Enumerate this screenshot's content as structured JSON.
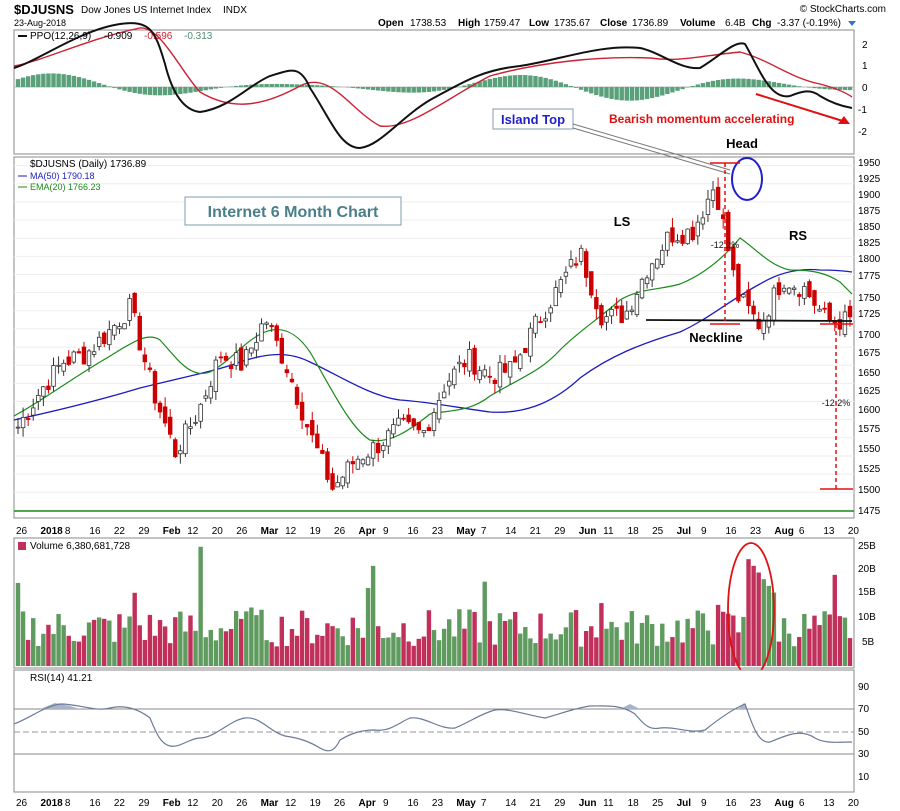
{
  "header": {
    "symbol": "$DJUSNS",
    "name": "Dow Jones US Internet Index",
    "exchange": "INDX",
    "date": "23-Aug-2018",
    "brand": "© StockCharts.com",
    "quote": {
      "open_label": "Open",
      "open": "1738.53",
      "high_label": "High",
      "high": "1759.47",
      "low_label": "Low",
      "low": "1735.67",
      "close_label": "Close",
      "close": "1736.89",
      "volume_label": "Volume",
      "volume": "6.4B",
      "chg_label": "Chg",
      "chg": "-3.37 (-0.19%)"
    }
  },
  "colors": {
    "up": "#3a8a3a",
    "down": "#cc0000",
    "ma50": "#1c1cff",
    "ema20": "#1a8a1a",
    "ppo_line": "#000000",
    "ppo_signal": "#cc0000",
    "histogram": "#5aa07a",
    "annotation_red": "#e01010",
    "annotation_blue": "#1f1fcc",
    "vol_up": "#5f9a5f",
    "vol_down": "#c0305a",
    "rsi": "#7080a0"
  },
  "ppo_panel": {
    "label": "PPO(12,26,9)",
    "ppo_value": "-0.909",
    "signal_value": "-0.596",
    "hist_value": "-0.313",
    "ticks": [
      "2",
      "1",
      "0",
      "-1",
      "-2"
    ],
    "annotation": "Bearish momentum accelerating"
  },
  "price_panel": {
    "legend_symbol": "$DJUSNS (Daily) 1736.89",
    "legend_ma": "MA(50) 1790.18",
    "legend_ema": "EMA(20) 1766.23",
    "title_box": "Internet 6 Month Chart",
    "island_label": "Island Top",
    "head_label": "Head",
    "ls_label": "LS",
    "rs_label": "RS",
    "neckline_label": "Neckline",
    "measure_label_1": "-12.2%",
    "measure_label_2": "-12.2%",
    "y_ticks": [
      "1950",
      "1925",
      "1900",
      "1875",
      "1850",
      "1825",
      "1800",
      "1775",
      "1750",
      "1725",
      "1700",
      "1675",
      "1650",
      "1625",
      "1600",
      "1575",
      "1550",
      "1525",
      "1500",
      "1475"
    ]
  },
  "x_axis": {
    "labels": [
      "26",
      "2018",
      "8",
      "16",
      "22",
      "29",
      "Feb",
      "12",
      "20",
      "26",
      "Mar",
      "12",
      "19",
      "26",
      "Apr",
      "9",
      "16",
      "23",
      "May",
      "7",
      "14",
      "21",
      "29",
      "Jun",
      "11",
      "18",
      "25",
      "Jul",
      "9",
      "16",
      "23",
      "Aug",
      "6",
      "13",
      "20"
    ]
  },
  "volume_panel": {
    "label": "Volume 6,380,681,728",
    "ticks": [
      "25B",
      "20B",
      "15B",
      "10B",
      "5B"
    ]
  },
  "rsi_panel": {
    "label": "RSI(14) 41.21",
    "ticks": [
      "90",
      "70",
      "50",
      "30",
      "10"
    ]
  },
  "chart_data": [
    {
      "type": "line",
      "panel": "PPO(12,26,9)",
      "series": [
        {
          "name": "PPO",
          "x": [
            "2017-12-26",
            "2018-01-16",
            "2018-02-01",
            "2018-02-12",
            "2018-03-01",
            "2018-03-12",
            "2018-04-02",
            "2018-04-16",
            "2018-05-01",
            "2018-05-21",
            "2018-06-11",
            "2018-07-02",
            "2018-07-16",
            "2018-07-25",
            "2018-08-01",
            "2018-08-13",
            "2018-08-23"
          ],
          "values": [
            0.8,
            1.9,
            2.2,
            0.4,
            -0.8,
            0.2,
            -2.2,
            -1.6,
            0.5,
            1.4,
            2.1,
            1.1,
            1.5,
            2.1,
            -0.1,
            -0.4,
            -0.909
          ]
        },
        {
          "name": "Signal",
          "x": [
            "2017-12-26",
            "2018-01-22",
            "2018-02-05",
            "2018-02-26",
            "2018-03-14",
            "2018-04-05",
            "2018-04-23",
            "2018-05-14",
            "2018-06-04",
            "2018-06-20",
            "2018-07-10",
            "2018-07-25",
            "2018-08-06",
            "2018-08-23"
          ],
          "values": [
            0.5,
            1.3,
            1.9,
            0.2,
            0.3,
            -1.6,
            -1.4,
            0.7,
            1.5,
            1.9,
            1.3,
            1.8,
            0.5,
            -0.596
          ]
        }
      ],
      "histogram_last": -0.313,
      "ylim": [
        -2.4,
        2.4
      ]
    },
    {
      "type": "candlestick",
      "panel": "$DJUSNS (Daily)",
      "x": [
        "2017-12-26",
        "2018-01-02",
        "2018-01-08",
        "2018-01-16",
        "2018-01-22",
        "2018-01-29",
        "2018-02-05",
        "2018-02-12",
        "2018-02-20",
        "2018-02-26",
        "2018-03-05",
        "2018-03-12",
        "2018-03-19",
        "2018-03-26",
        "2018-04-02",
        "2018-04-09",
        "2018-04-16",
        "2018-04-23",
        "2018-04-30",
        "2018-05-07",
        "2018-05-14",
        "2018-05-21",
        "2018-05-29",
        "2018-06-04",
        "2018-06-11",
        "2018-06-18",
        "2018-06-25",
        "2018-07-02",
        "2018-07-09",
        "2018-07-16",
        "2018-07-20",
        "2018-07-25",
        "2018-07-27",
        "2018-08-01",
        "2018-08-06",
        "2018-08-13",
        "2018-08-20",
        "2018-08-23"
      ],
      "close": [
        1590,
        1640,
        1680,
        1690,
        1720,
        1755,
        1640,
        1555,
        1610,
        1690,
        1675,
        1740,
        1670,
        1580,
        1505,
        1545,
        1565,
        1590,
        1580,
        1650,
        1685,
        1660,
        1670,
        1730,
        1780,
        1830,
        1740,
        1745,
        1810,
        1855,
        1860,
        1925,
        1770,
        1730,
        1795,
        1780,
        1735,
        1736.89
      ],
      "ma50": [
        1595,
        1610,
        1630,
        1650,
        1665,
        1690,
        1695,
        1685,
        1680,
        1680,
        1685,
        1690,
        1690,
        1675,
        1645,
        1615,
        1600,
        1595,
        1590,
        1590,
        1595,
        1605,
        1625,
        1650,
        1670,
        1690,
        1700,
        1710,
        1720,
        1740,
        1755,
        1765,
        1770,
        1775,
        1785,
        1790,
        1790,
        1790.18
      ],
      "ema20": [
        1590,
        1620,
        1660,
        1690,
        1710,
        1720,
        1710,
        1660,
        1640,
        1660,
        1680,
        1705,
        1700,
        1660,
        1610,
        1570,
        1560,
        1570,
        1585,
        1600,
        1640,
        1645,
        1660,
        1680,
        1720,
        1765,
        1760,
        1765,
        1780,
        1800,
        1815,
        1840,
        1830,
        1800,
        1790,
        1790,
        1770,
        1766.23
      ],
      "neckline": 1715,
      "ylim": [
        1470,
        1955
      ]
    },
    {
      "type": "bar",
      "panel": "Volume",
      "last_value": 6380681728,
      "ylim": [
        0,
        26
      ]
    },
    {
      "type": "line",
      "panel": "RSI(14)",
      "series": [
        {
          "name": "RSI(14)",
          "x": [
            "2017-12-26",
            "2018-01-08",
            "2018-01-22",
            "2018-02-05",
            "2018-02-12",
            "2018-03-01",
            "2018-03-12",
            "2018-03-26",
            "2018-04-02",
            "2018-04-23",
            "2018-05-14",
            "2018-06-04",
            "2018-06-20",
            "2018-07-10",
            "2018-07-25",
            "2018-07-27",
            "2018-08-13",
            "2018-08-23"
          ],
          "values": [
            55,
            65,
            68,
            40,
            38,
            55,
            62,
            40,
            32,
            50,
            60,
            62,
            68,
            58,
            75,
            40,
            45,
            41.21
          ]
        }
      ],
      "ylim": [
        0,
        100
      ]
    }
  ]
}
